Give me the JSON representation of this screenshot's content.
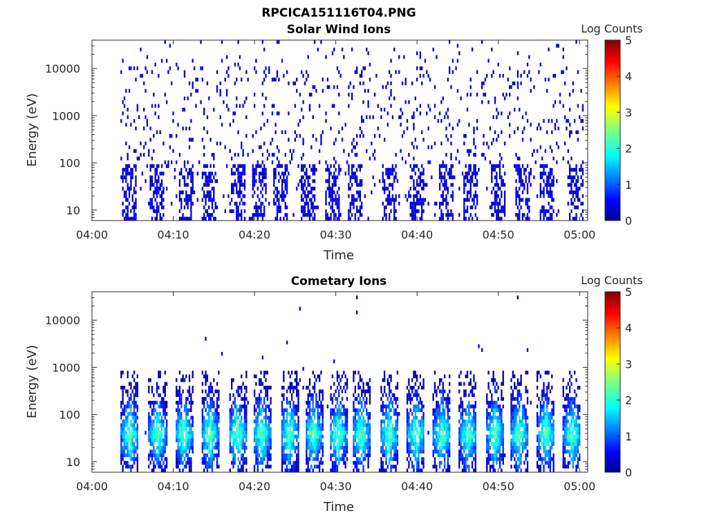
{
  "figure_title": "RPCICA151116T04.PNG",
  "chart_data": [
    {
      "type": "heatmap",
      "title": "Solar Wind Ions",
      "xlabel": "Time",
      "ylabel": "Energy (eV)",
      "x_ticks": [
        "04:00",
        "04:10",
        "04:20",
        "04:30",
        "04:40",
        "04:50",
        "05:00"
      ],
      "x_range_minutes": [
        0,
        61
      ],
      "y_scale": "log",
      "y_ticks": [
        "10",
        "100",
        "1000",
        "10000"
      ],
      "y_range": [
        6,
        40000
      ],
      "colorbar": {
        "label": "Log Counts",
        "ticks": [
          "0",
          "1",
          "2",
          "3",
          "4",
          "5"
        ],
        "range": [
          0,
          5
        ],
        "colormap": "jet"
      },
      "pattern": {
        "seed": 11,
        "mode": "solar",
        "bursts_minutes": [
          4.6,
          8.0,
          11.5,
          14.2,
          17.8,
          20.5,
          23.0,
          26.5,
          29.5,
          32.2,
          36.5,
          40.0,
          43.5,
          46.5,
          50.0,
          53.0,
          56.0,
          59.5
        ],
        "active_range_minutes": [
          3.5,
          60.5
        ]
      }
    },
    {
      "type": "heatmap",
      "title": "Cometary Ions",
      "xlabel": "Time",
      "ylabel": "Energy (eV)",
      "x_ticks": [
        "04:00",
        "04:10",
        "04:20",
        "04:30",
        "04:40",
        "04:50",
        "05:00"
      ],
      "x_range_minutes": [
        0,
        61
      ],
      "y_scale": "log",
      "y_ticks": [
        "10",
        "100",
        "1000",
        "10000"
      ],
      "y_range": [
        6,
        40000
      ],
      "colorbar": {
        "label": "Log Counts",
        "ticks": [
          "0",
          "1",
          "2",
          "3",
          "4",
          "5"
        ],
        "range": [
          0,
          5
        ],
        "colormap": "jet"
      },
      "pattern": {
        "seed": 29,
        "mode": "cometary",
        "bursts_minutes": [
          4.6,
          8.0,
          11.2,
          14.4,
          17.8,
          20.8,
          24.2,
          27.2,
          30.2,
          33.0,
          36.5,
          39.8,
          43.0,
          46.2,
          49.5,
          52.5,
          55.8,
          59.0
        ],
        "active_range_minutes": [
          3.5,
          60.5
        ]
      }
    }
  ]
}
